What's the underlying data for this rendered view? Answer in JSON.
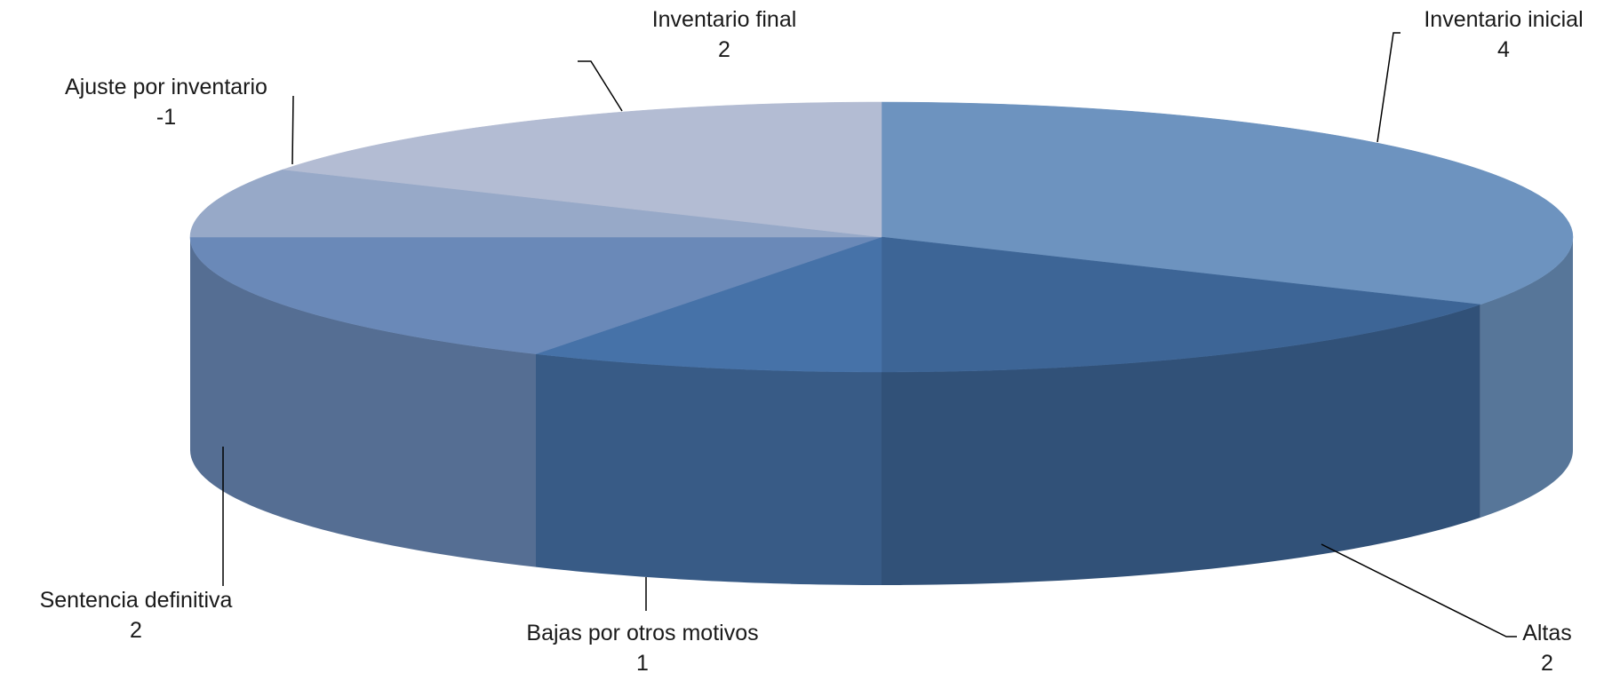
{
  "chart_data": {
    "type": "pie3d",
    "categories": [
      "Inventario inicial",
      "Altas",
      "Bajas por otros motivos",
      "Sentencia definitiva",
      "Ajuste por inventario",
      "Inventario final"
    ],
    "values": [
      4,
      2,
      1,
      2,
      -1,
      2
    ],
    "colors": [
      "#6d93bf",
      "#3d6596",
      "#4672a8",
      "#6a89b8",
      "#97a9c8",
      "#b3bcd3"
    ]
  }
}
